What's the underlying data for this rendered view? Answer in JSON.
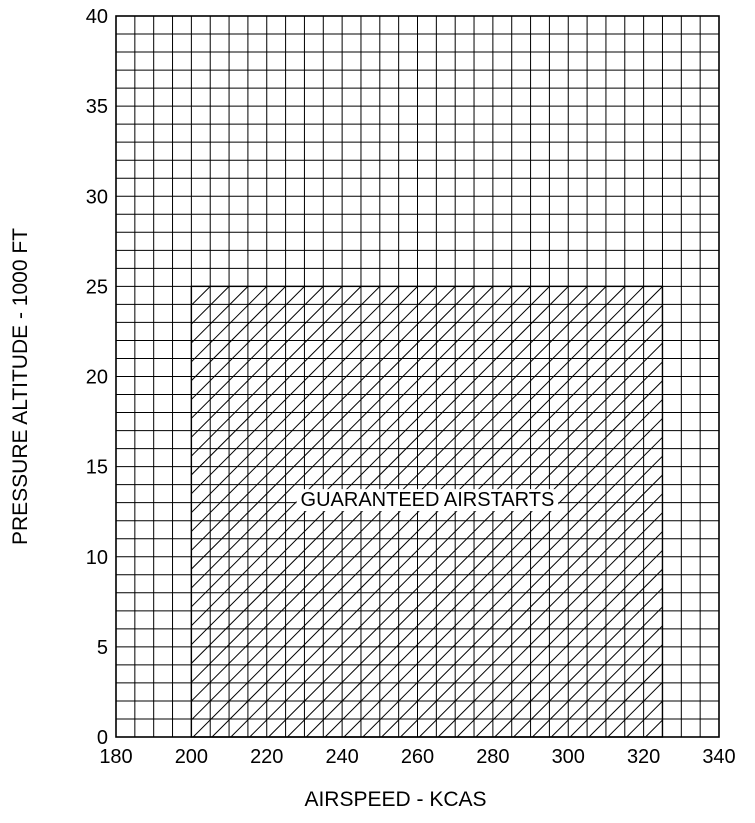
{
  "chart_data": {
    "type": "area",
    "xlabel": "AIRSPEED - KCAS",
    "ylabel": "PRESSURE ALTITUDE - 1000 FT",
    "xlim": [
      180,
      340
    ],
    "ylim": [
      0,
      40
    ],
    "x_ticks": [
      180,
      200,
      220,
      240,
      260,
      280,
      300,
      320,
      340
    ],
    "y_ticks": [
      0,
      5,
      10,
      15,
      20,
      25,
      30,
      35,
      40
    ],
    "grid": true,
    "x_minor_step": 5,
    "y_minor_step": 1,
    "regions": [
      {
        "label": "GUARANTEED AIRSTARTS",
        "x_min": 200,
        "x_max": 325,
        "y_min": 0,
        "y_max": 25,
        "fill": "diagonal-hatch"
      }
    ],
    "colors": {
      "grid": "#000000",
      "hatch": "#000000",
      "background": "#ffffff"
    }
  }
}
